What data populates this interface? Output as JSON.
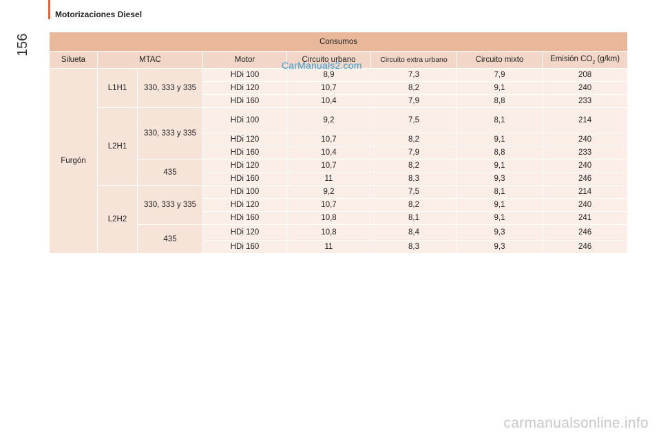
{
  "header": {
    "section_title": "Motorizaciones Diesel",
    "page_number": "156"
  },
  "watermarks": {
    "top": "CarManuals2.com",
    "bottom": "carmanualsonline.info"
  },
  "table": {
    "title": "Consumos",
    "columns": {
      "silueta": "Silueta",
      "mtac": "MTAC",
      "motor": "Motor",
      "urbano": "Circuito urbano",
      "extra_urbano": "Circuito extra urbano",
      "mixto": "Circuito mixto",
      "emision_prefix": "Emisión CO",
      "emision_sub": "2",
      "emision_suffix": " (g/km)"
    },
    "silueta": "Furgón",
    "groups": {
      "g1": {
        "label": "L1H1",
        "mtac1": "330, 333 y 335"
      },
      "g2": {
        "label": "L2H1",
        "mtac1": "330, 333 y 335",
        "mtac2": "435"
      },
      "g3": {
        "label": "L2H2",
        "mtac1": "330, 333 y 335",
        "mtac2": "435"
      }
    },
    "rows": [
      {
        "motor": "HDi 100",
        "urbano": "8,9",
        "extra": "7,3",
        "mixto": "7,9",
        "co2": "208"
      },
      {
        "motor": "HDi 120",
        "urbano": "10,7",
        "extra": "8,2",
        "mixto": "9,1",
        "co2": "240"
      },
      {
        "motor": "HDi 160",
        "urbano": "10,4",
        "extra": "7,9",
        "mixto": "8,8",
        "co2": "233"
      },
      {
        "motor": "HDi 100",
        "urbano": "9,2",
        "extra": "7,5",
        "mixto": "8,1",
        "co2": "214"
      },
      {
        "motor": "HDi 120",
        "urbano": "10,7",
        "extra": "8,2",
        "mixto": "9,1",
        "co2": "240"
      },
      {
        "motor": "HDi 160",
        "urbano": "10,4",
        "extra": "7,9",
        "mixto": "8,8",
        "co2": "233"
      },
      {
        "motor": "HDi 120",
        "urbano": "10,7",
        "extra": "8,2",
        "mixto": "9,1",
        "co2": "240"
      },
      {
        "motor": "HDi 160",
        "urbano": "11",
        "extra": "8,3",
        "mixto": "9,3",
        "co2": "246"
      },
      {
        "motor": "HDi 100",
        "urbano": "9,2",
        "extra": "7,5",
        "mixto": "8,1",
        "co2": "214"
      },
      {
        "motor": "HDi 120",
        "urbano": "10,7",
        "extra": "8,2",
        "mixto": "9,1",
        "co2": "240"
      },
      {
        "motor": "HDi 160",
        "urbano": "10,8",
        "extra": "8,1",
        "mixto": "9,1",
        "co2": "241"
      },
      {
        "motor": "HDi 120",
        "urbano": "10,8",
        "extra": "8,4",
        "mixto": "9,3",
        "co2": "246"
      },
      {
        "motor": "HDi 160",
        "urbano": "11",
        "extra": "8,3",
        "mixto": "9,3",
        "co2": "246"
      }
    ]
  }
}
